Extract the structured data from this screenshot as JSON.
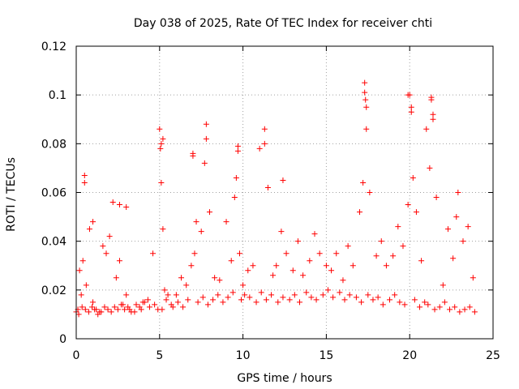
{
  "chart_data": {
    "type": "scatter",
    "title": "Day 038 of 2025, Rate Of TEC Index for receiver chti",
    "xlabel": "GPS time / hours",
    "ylabel": "ROTI / TECUs",
    "xlim": [
      0,
      25
    ],
    "ylim": [
      0,
      0.12
    ],
    "xticks": [
      0,
      5,
      10,
      15,
      20,
      25
    ],
    "xtick_labels": [
      "0",
      "5",
      "10",
      "15",
      "20",
      "25"
    ],
    "yticks": [
      0,
      0.02,
      0.04,
      0.06,
      0.08,
      0.1,
      0.12
    ],
    "ytick_labels": [
      "0",
      "0.02",
      "0.04",
      "0.06",
      "0.08",
      "0.1",
      "0.12"
    ],
    "grid": true,
    "marker": "+",
    "color": "#ff0000",
    "series": [
      {
        "x": [
          0.1,
          0.2,
          0.3,
          0.4,
          0.5,
          0.6,
          0.8,
          1.0,
          1.2,
          1.4,
          1.6,
          1.8,
          2.0,
          2.2,
          2.4,
          2.6,
          2.8,
          3.0,
          3.2,
          3.5,
          3.8,
          4.0,
          4.3,
          4.6,
          4.9,
          5.0,
          5.05,
          5.1,
          5.2,
          5.3,
          5.5,
          5.8,
          6.0,
          6.3,
          6.6,
          6.9,
          7.0,
          7.1,
          7.2,
          7.5,
          7.7,
          7.8,
          8.0,
          8.3,
          8.6,
          9.0,
          9.3,
          9.5,
          9.6,
          9.7,
          9.8,
          10.0,
          10.3,
          10.6,
          11.0,
          11.3,
          11.5,
          11.8,
          12.0,
          12.3,
          12.6,
          13.0,
          13.3,
          13.6,
          14.0,
          14.3,
          14.6,
          15.0,
          15.3,
          15.6,
          16.0,
          16.3,
          16.6,
          17.0,
          17.2,
          17.3,
          17.35,
          17.4,
          17.6,
          18.0,
          18.3,
          18.6,
          19.0,
          19.3,
          19.6,
          19.9,
          20.0,
          20.1,
          20.2,
          20.4,
          20.7,
          21.0,
          21.2,
          21.3,
          21.4,
          21.6,
          22.0,
          22.3,
          22.6,
          22.9,
          23.2,
          23.5,
          23.8,
          0.0,
          0.15,
          0.35,
          0.55,
          0.75,
          0.95,
          1.1,
          1.3,
          1.5,
          1.7,
          1.9,
          2.1,
          2.3,
          2.5,
          2.7,
          2.9,
          3.1,
          3.3,
          3.6,
          3.9,
          4.1,
          4.4,
          4.7,
          5.15,
          5.4,
          5.7,
          6.1,
          6.4,
          6.7,
          7.3,
          7.6,
          7.9,
          8.2,
          8.5,
          8.8,
          9.1,
          9.4,
          9.9,
          10.1,
          10.4,
          10.8,
          11.1,
          11.4,
          11.7,
          12.1,
          12.4,
          12.8,
          13.1,
          13.4,
          13.8,
          14.1,
          14.4,
          14.8,
          15.1,
          15.4,
          15.8,
          16.1,
          16.4,
          16.8,
          17.1,
          17.5,
          17.8,
          18.1,
          18.4,
          18.8,
          19.1,
          19.4,
          19.7,
          20.3,
          20.6,
          20.9,
          21.1,
          21.5,
          21.8,
          22.1,
          22.4,
          22.7,
          23.0,
          23.3,
          23.6,
          23.9,
          0.5,
          1.0,
          2.6,
          3.0,
          5.1,
          5.2,
          7.0,
          7.8,
          9.7,
          11.3,
          12.4,
          17.3,
          17.4,
          19.9,
          20.1,
          21.3,
          21.4,
          22.8
        ],
        "y": [
          0.012,
          0.028,
          0.018,
          0.032,
          0.064,
          0.022,
          0.045,
          0.015,
          0.012,
          0.011,
          0.038,
          0.035,
          0.042,
          0.056,
          0.025,
          0.032,
          0.014,
          0.018,
          0.012,
          0.011,
          0.013,
          0.015,
          0.016,
          0.035,
          0.012,
          0.086,
          0.078,
          0.064,
          0.045,
          0.02,
          0.018,
          0.013,
          0.018,
          0.025,
          0.022,
          0.03,
          0.075,
          0.035,
          0.048,
          0.044,
          0.072,
          0.082,
          0.052,
          0.025,
          0.024,
          0.048,
          0.032,
          0.058,
          0.066,
          0.077,
          0.035,
          0.022,
          0.028,
          0.03,
          0.078,
          0.086,
          0.062,
          0.026,
          0.03,
          0.044,
          0.035,
          0.028,
          0.04,
          0.026,
          0.032,
          0.043,
          0.035,
          0.03,
          0.028,
          0.035,
          0.024,
          0.038,
          0.03,
          0.052,
          0.064,
          0.101,
          0.098,
          0.086,
          0.06,
          0.034,
          0.04,
          0.03,
          0.034,
          0.046,
          0.038,
          0.055,
          0.1,
          0.093,
          0.066,
          0.052,
          0.032,
          0.086,
          0.07,
          0.098,
          0.092,
          0.058,
          0.022,
          0.045,
          0.033,
          0.06,
          0.04,
          0.046,
          0.025,
          0.011,
          0.01,
          0.013,
          0.012,
          0.011,
          0.013,
          0.012,
          0.01,
          0.011,
          0.013,
          0.012,
          0.011,
          0.013,
          0.012,
          0.014,
          0.012,
          0.013,
          0.011,
          0.014,
          0.012,
          0.015,
          0.013,
          0.014,
          0.012,
          0.016,
          0.014,
          0.015,
          0.013,
          0.016,
          0.015,
          0.017,
          0.014,
          0.016,
          0.018,
          0.015,
          0.017,
          0.019,
          0.016,
          0.018,
          0.017,
          0.015,
          0.019,
          0.016,
          0.018,
          0.015,
          0.017,
          0.016,
          0.018,
          0.015,
          0.019,
          0.017,
          0.016,
          0.018,
          0.02,
          0.017,
          0.019,
          0.016,
          0.018,
          0.017,
          0.015,
          0.018,
          0.016,
          0.017,
          0.014,
          0.016,
          0.018,
          0.015,
          0.014,
          0.016,
          0.013,
          0.015,
          0.014,
          0.012,
          0.013,
          0.015,
          0.012,
          0.013,
          0.011,
          0.012,
          0.013,
          0.011,
          0.067,
          0.048,
          0.055,
          0.054,
          0.08,
          0.082,
          0.076,
          0.088,
          0.079,
          0.08,
          0.065,
          0.105,
          0.095,
          0.1,
          0.095,
          0.099,
          0.09,
          0.05
        ]
      }
    ]
  }
}
